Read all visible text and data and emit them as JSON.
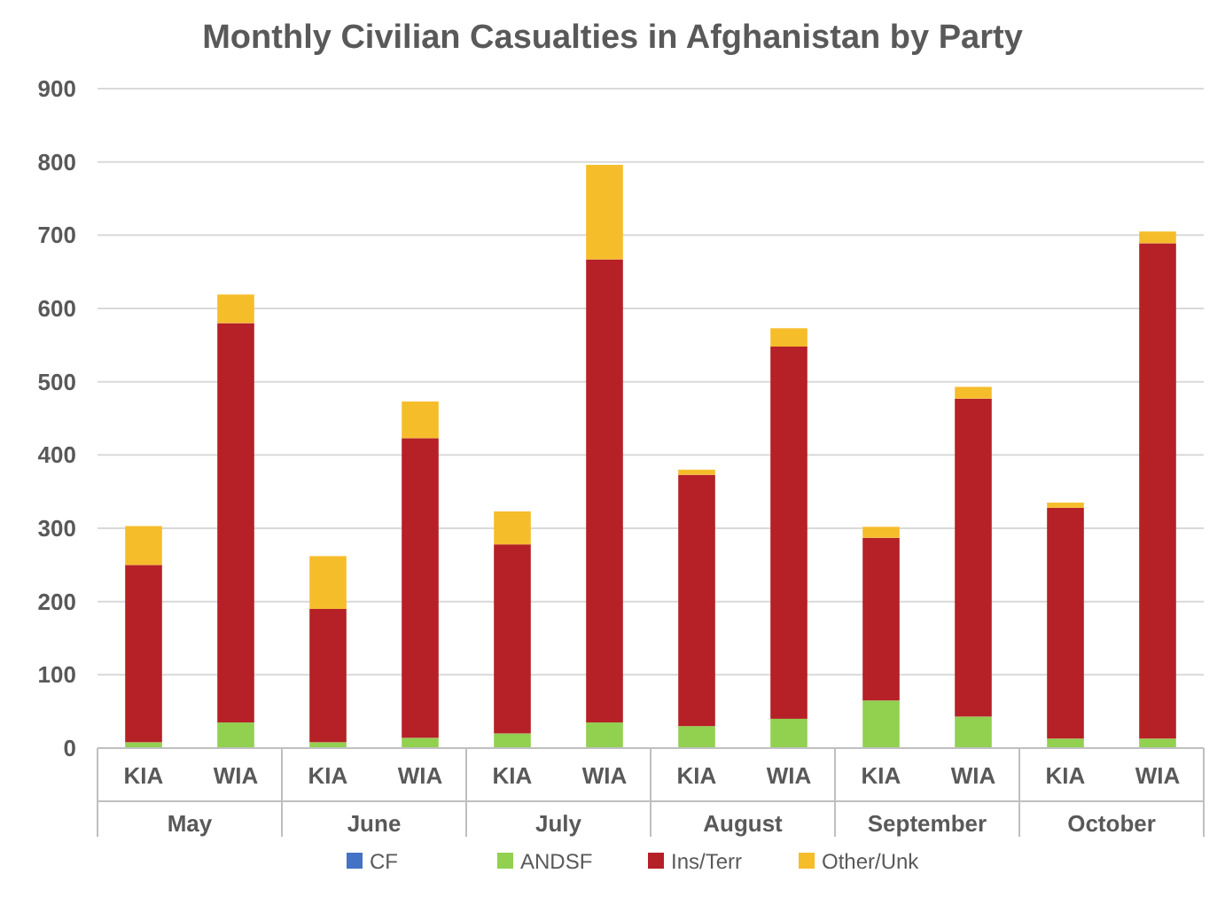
{
  "chart_data": {
    "type": "bar",
    "title": "Monthly Civilian Casualties in Afghanistan by Party",
    "categories": [
      "KIA",
      "WIA",
      "KIA",
      "WIA",
      "KIA",
      "WIA",
      "KIA",
      "WIA",
      "KIA",
      "WIA",
      "KIA",
      "WIA"
    ],
    "annotations": [
      "May",
      "June",
      "July",
      "August",
      "September",
      "October"
    ],
    "stacked": true,
    "ylim": [
      0,
      900
    ],
    "yticks": [
      0,
      100,
      200,
      300,
      400,
      500,
      600,
      700,
      800,
      900
    ],
    "grid": "y",
    "legend": "bottom",
    "series": [
      {
        "name": "CF",
        "color": "#4472c4",
        "values": [
          0,
          0,
          0,
          0,
          0,
          0,
          0,
          0,
          0,
          0,
          0,
          0
        ]
      },
      {
        "name": "ANDSF",
        "color": "#92d050",
        "values": [
          8,
          35,
          8,
          14,
          20,
          35,
          30,
          40,
          65,
          43,
          13,
          13
        ]
      },
      {
        "name": "Ins/Terr",
        "color": "#b52126",
        "values": [
          242,
          545,
          182,
          409,
          258,
          632,
          343,
          508,
          222,
          434,
          315,
          676
        ]
      },
      {
        "name": "Other/Unk",
        "color": "#f6bd2b",
        "values": [
          53,
          39,
          72,
          50,
          45,
          129,
          7,
          25,
          15,
          16,
          7,
          16
        ]
      }
    ]
  }
}
